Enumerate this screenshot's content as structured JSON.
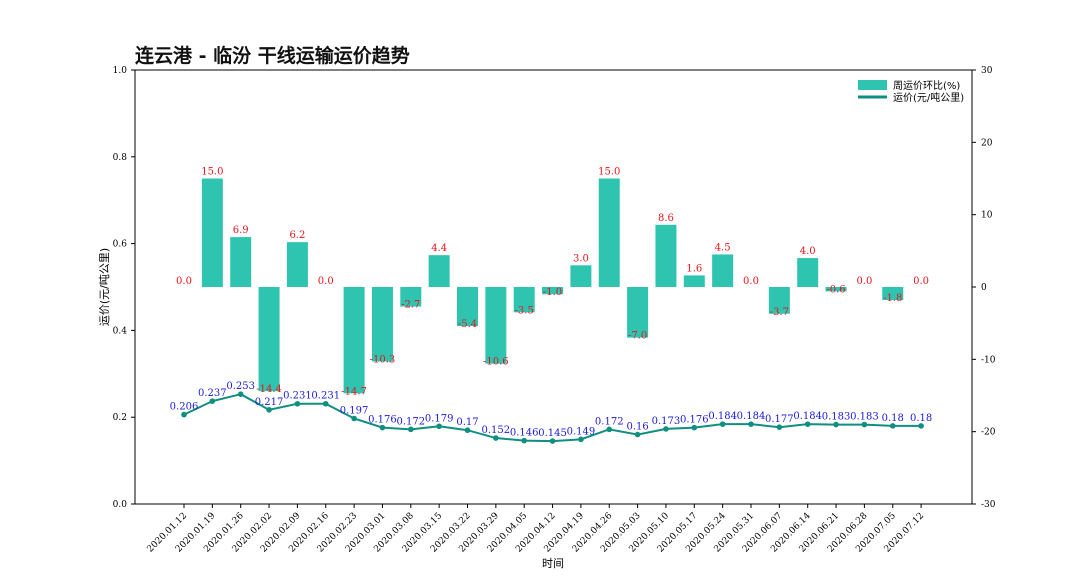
{
  "chart_data": {
    "type": "bar+line",
    "title": "连云港 - 临汾 干线运输运价趋势",
    "xlabel": "时间",
    "ylabel": "运价(元/吨公里)",
    "ylim_left": [
      0.0,
      1.0
    ],
    "ylim_right": [
      -30,
      30
    ],
    "yticks_left": [
      "0.0",
      "0.2",
      "0.4",
      "0.6",
      "0.8",
      "1.0"
    ],
    "yticks_right": [
      "-30",
      "-20",
      "-10",
      "0",
      "10",
      "20",
      "30"
    ],
    "legend_position": "top-right",
    "categories": [
      "2020.01.12",
      "2020.01.19",
      "2020.01.26",
      "2020.02.02",
      "2020.02.09",
      "2020.02.16",
      "2020.02.23",
      "2020.03.01",
      "2020.03.08",
      "2020.03.15",
      "2020.03.22",
      "2020.03.29",
      "2020.04.05",
      "2020.04.12",
      "2020.04.19",
      "2020.04.26",
      "2020.05.03",
      "2020.05.10",
      "2020.05.17",
      "2020.05.24",
      "2020.05.31",
      "2020.06.07",
      "2020.06.14",
      "2020.06.21",
      "2020.06.28",
      "2020.07.05",
      "2020.07.12"
    ],
    "series": [
      {
        "name": "周运价环比(%)",
        "type": "bar",
        "axis": "right",
        "color": "#2ec4b0",
        "values": [
          0.0,
          15.0,
          6.9,
          -14.4,
          6.2,
          0.0,
          -14.7,
          -10.3,
          -2.7,
          4.4,
          -5.4,
          -10.6,
          -3.5,
          -1.0,
          3.0,
          15.0,
          -7.0,
          8.6,
          1.6,
          4.5,
          0.0,
          -3.7,
          4.0,
          -0.6,
          0.0,
          -1.8,
          0.0
        ],
        "labels": [
          "0.0",
          "15.0",
          "6.9",
          "-14.4",
          "6.2",
          "0.0",
          "-14.7",
          "-10.3",
          "-2.7",
          "4.4",
          "-5.4",
          "-10.6",
          "-3.5",
          "-1.0",
          "3.0",
          "15.0",
          "-7.0",
          "8.6",
          "1.6",
          "4.5",
          "0.0",
          "-3.7",
          "4.0",
          "-0.6",
          "0.0",
          "-1.8",
          "0.0"
        ]
      },
      {
        "name": "运价(元/吨公里)",
        "type": "line",
        "axis": "left",
        "color": "#0f8f7f",
        "values": [
          0.206,
          0.237,
          0.253,
          0.217,
          0.231,
          0.231,
          0.197,
          0.176,
          0.172,
          0.179,
          0.17,
          0.152,
          0.146,
          0.145,
          0.149,
          0.172,
          0.16,
          0.173,
          0.176,
          0.184,
          0.184,
          0.177,
          0.184,
          0.183,
          0.183,
          0.18,
          0.18
        ],
        "labels": [
          "0.206",
          "0.237",
          "0.253",
          "0.217",
          "0.231",
          "0.231",
          "0.197",
          "0.176",
          "0.172",
          "0.179",
          "0.17",
          "0.152",
          "0.146",
          "0.145",
          "0.149",
          "0.172",
          "0.16",
          "0.173",
          "0.176",
          "0.184",
          "0.184",
          "0.177",
          "0.184",
          "0.183",
          "0.183",
          "0.18",
          "0.18"
        ]
      }
    ]
  }
}
